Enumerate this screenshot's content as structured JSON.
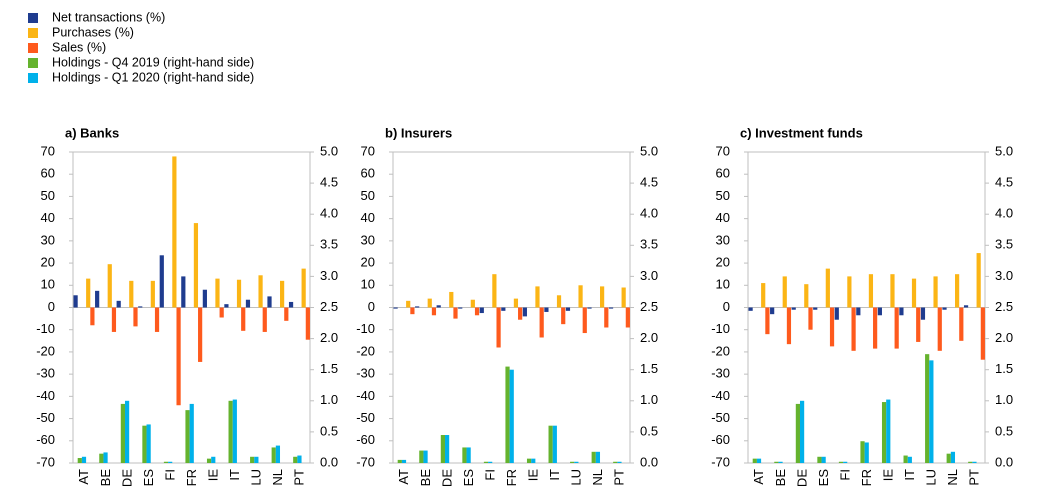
{
  "legend": [
    {
      "name": "Net transactions (%)",
      "color": "#1f3c8f"
    },
    {
      "name": "Purchases (%)",
      "color": "#fbb515"
    },
    {
      "name": "Sales (%)",
      "color": "#fe5a1d"
    },
    {
      "name": "Holdings - Q4 2019 (right-hand side)",
      "color": "#65b32e"
    },
    {
      "name": "Holdings - Q1 2020 (right-hand side)",
      "color": "#00b1ea"
    }
  ],
  "chart_data": [
    {
      "type": "bar",
      "title": "a) Banks",
      "categories": [
        "AT",
        "BE",
        "DE",
        "ES",
        "FI",
        "FR",
        "IE",
        "IT",
        "LU",
        "NL",
        "PT"
      ],
      "series": [
        {
          "values": [
            5.5,
            7.5,
            3,
            0.5,
            23.5,
            14,
            8,
            1.5,
            3.5,
            5,
            2.5
          ]
        },
        {
          "values": [
            13,
            19.5,
            12,
            12,
            68,
            38,
            13,
            12.5,
            14.5,
            12,
            17.5
          ]
        },
        {
          "values": [
            -8,
            -11,
            -8.5,
            -11,
            -44,
            -24.5,
            -4.5,
            -10.5,
            -11,
            -6,
            -14.5
          ]
        },
        {
          "axis": "y2",
          "values": [
            0.08,
            0.15,
            0.95,
            0.6,
            0.02,
            0.85,
            0.07,
            1.0,
            0.1,
            0.25,
            0.1
          ]
        },
        {
          "axis": "y2",
          "values": [
            0.1,
            0.17,
            1.0,
            0.62,
            0.02,
            0.95,
            0.1,
            1.02,
            0.1,
            0.28,
            0.12
          ]
        }
      ],
      "ylim": [
        -70,
        70
      ],
      "yticks": [
        -70,
        -60,
        -50,
        -40,
        -30,
        -20,
        -10,
        0,
        10,
        20,
        30,
        40,
        50,
        60,
        70
      ],
      "y2lim": [
        0,
        5
      ],
      "y2ticks": [
        {
          "value": 0,
          "label": "0.0"
        },
        0.5,
        {
          "value": 1,
          "label": "1.0"
        },
        1.5,
        {
          "value": 2,
          "label": "2.0"
        },
        2.5,
        {
          "value": 3,
          "label": "3.0"
        },
        3.5,
        {
          "value": 4,
          "label": "4.0"
        },
        4.5,
        {
          "value": 5,
          "label": "5.0"
        }
      ]
    },
    {
      "type": "bar",
      "title": "b) Insurers",
      "categories": [
        "AT",
        "BE",
        "DE",
        "ES",
        "FI",
        "FR",
        "IE",
        "IT",
        "LU",
        "NL",
        "PT"
      ],
      "series": [
        {
          "values": [
            -0.5,
            0.5,
            1,
            -0.5,
            -2.5,
            -1.5,
            -4,
            -2,
            -1.5,
            -0.5,
            -0.5
          ]
        },
        {
          "values": [
            3,
            4,
            7,
            3.5,
            15,
            4,
            9.5,
            5.5,
            10,
            9.5,
            9
          ]
        },
        {
          "values": [
            -3,
            -3.5,
            -5,
            -3.5,
            -18,
            -5.5,
            -13.5,
            -7.5,
            -11.5,
            -9,
            -9
          ]
        },
        {
          "axis": "y2",
          "values": [
            0.05,
            0.2,
            0.45,
            0.25,
            0.02,
            1.55,
            0.07,
            0.6,
            0.02,
            0.18,
            0.02
          ]
        },
        {
          "axis": "y2",
          "values": [
            0.05,
            0.2,
            0.45,
            0.25,
            0.02,
            1.5,
            0.07,
            0.6,
            0.02,
            0.18,
            0.02
          ]
        }
      ],
      "ylim": [
        -70,
        70
      ],
      "yticks": [
        -70,
        -60,
        -50,
        -40,
        -30,
        -20,
        -10,
        0,
        10,
        20,
        30,
        40,
        50,
        60,
        70
      ],
      "y2lim": [
        0,
        5
      ],
      "y2ticks": [
        {
          "value": 0,
          "label": "0.0"
        },
        0.5,
        {
          "value": 1,
          "label": "1.0"
        },
        1.5,
        {
          "value": 2,
          "label": "2.0"
        },
        2.5,
        {
          "value": 3,
          "label": "3.0"
        },
        3.5,
        {
          "value": 4,
          "label": "4.0"
        },
        4.5,
        {
          "value": 5,
          "label": "5.0"
        }
      ]
    },
    {
      "type": "bar",
      "title": "c) Investment funds",
      "categories": [
        "AT",
        "BE",
        "DE",
        "ES",
        "FI",
        "FR",
        "IE",
        "IT",
        "LU",
        "NL",
        "PT"
      ],
      "series": [
        {
          "values": [
            -1.5,
            -3,
            -1,
            -1,
            -5.5,
            -3.5,
            -3.5,
            -3.5,
            -5.5,
            -1,
            1
          ]
        },
        {
          "values": [
            11,
            14,
            10.5,
            17.5,
            14,
            15,
            15,
            13,
            14,
            15,
            24.5
          ]
        },
        {
          "values": [
            -12,
            -16.5,
            -10,
            -17.5,
            -19.5,
            -18.5,
            -18.5,
            -15.5,
            -19.5,
            -15,
            -23.5
          ]
        },
        {
          "axis": "y2",
          "values": [
            0.07,
            0.02,
            0.95,
            0.1,
            0.02,
            0.35,
            0.98,
            0.12,
            1.75,
            0.15,
            0.02
          ]
        },
        {
          "axis": "y2",
          "values": [
            0.07,
            0.02,
            1.0,
            0.1,
            0.02,
            0.33,
            1.02,
            0.1,
            1.65,
            0.18,
            0.02
          ]
        }
      ],
      "ylim": [
        -70,
        70
      ],
      "yticks": [
        -70,
        -60,
        -50,
        -40,
        -30,
        -20,
        -10,
        0,
        10,
        20,
        30,
        40,
        50,
        60,
        70
      ],
      "y2lim": [
        0,
        5
      ],
      "y2ticks": [
        {
          "value": 0,
          "label": "0.0"
        },
        0.5,
        {
          "value": 1,
          "label": "1.0"
        },
        1.5,
        {
          "value": 2,
          "label": "2.0"
        },
        2.5,
        {
          "value": 3,
          "label": "3.0"
        },
        3.5,
        {
          "value": 4,
          "label": "4.0"
        },
        4.5,
        {
          "value": 5,
          "label": "5.0"
        }
      ]
    }
  ]
}
